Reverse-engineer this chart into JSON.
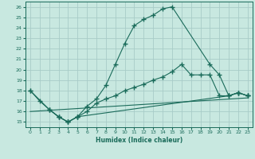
{
  "xlabel": "Humidex (Indice chaleur)",
  "bg_color": "#c8e8e0",
  "line_color": "#1a6b5a",
  "grid_color": "#a8ccc8",
  "xlim": [
    -0.5,
    23.5
  ],
  "ylim": [
    14.5,
    26.5
  ],
  "xticks": [
    0,
    1,
    2,
    3,
    4,
    5,
    6,
    7,
    8,
    9,
    10,
    11,
    12,
    13,
    14,
    15,
    16,
    17,
    18,
    19,
    20,
    21,
    22,
    23
  ],
  "yticks": [
    15,
    16,
    17,
    18,
    19,
    20,
    21,
    22,
    23,
    24,
    25,
    26
  ],
  "line1_x": [
    0,
    1,
    2,
    3,
    4,
    5,
    6,
    7,
    8,
    9,
    10,
    11,
    12,
    13,
    14,
    15,
    19,
    20,
    21,
    22,
    23
  ],
  "line1_y": [
    18.0,
    17.0,
    16.2,
    15.5,
    15.0,
    15.5,
    16.5,
    17.2,
    18.5,
    20.5,
    22.5,
    24.2,
    24.8,
    25.2,
    25.8,
    26.0,
    20.5,
    19.5,
    17.5,
    17.8,
    17.5
  ],
  "line2_x": [
    2,
    3,
    4,
    5,
    6,
    7,
    8,
    9,
    10,
    11,
    12,
    13,
    14,
    15,
    16,
    17,
    18,
    19,
    20,
    21,
    22,
    23
  ],
  "line2_y": [
    16.2,
    15.5,
    15.0,
    15.5,
    16.0,
    16.8,
    17.2,
    17.5,
    18.0,
    18.3,
    18.6,
    19.0,
    19.3,
    19.8,
    20.5,
    19.5,
    19.5,
    19.5,
    17.5,
    17.5,
    17.8,
    17.5
  ],
  "line3_x": [
    0,
    2,
    3,
    4,
    5,
    21,
    22,
    23
  ],
  "line3_y": [
    18.0,
    16.2,
    15.5,
    15.0,
    15.5,
    17.5,
    17.8,
    17.5
  ],
  "line4_x": [
    0,
    23
  ],
  "line4_y": [
    16.0,
    17.3
  ],
  "marker": "+",
  "markersize": 4
}
